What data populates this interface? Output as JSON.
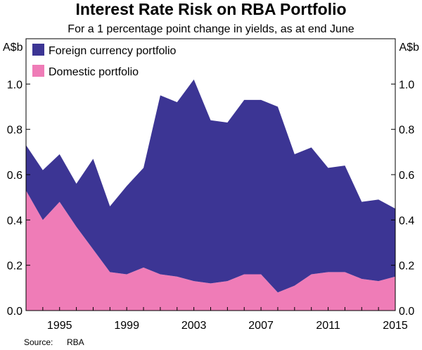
{
  "chart_data": {
    "type": "area",
    "title": "Interest Rate Risk on RBA Portfolio",
    "subtitle": "For a 1 percentage point change in yields, as at end June",
    "unit_left": "A$b",
    "unit_right": "A$b",
    "x": [
      1993,
      1994,
      1995,
      1996,
      1997,
      1998,
      1999,
      2000,
      2001,
      2002,
      2003,
      2004,
      2005,
      2006,
      2007,
      2008,
      2009,
      2010,
      2011,
      2012,
      2013,
      2014,
      2015
    ],
    "series": [
      {
        "name": "Domestic portfolio",
        "color": "#ef7cb7",
        "values": [
          0.53,
          0.4,
          0.48,
          0.37,
          0.27,
          0.17,
          0.16,
          0.19,
          0.16,
          0.15,
          0.13,
          0.12,
          0.13,
          0.16,
          0.16,
          0.08,
          0.11,
          0.16,
          0.17,
          0.17,
          0.14,
          0.13,
          0.15
        ]
      },
      {
        "name": "Foreign currency portfolio",
        "color": "#3c3594",
        "values": [
          0.2,
          0.22,
          0.21,
          0.19,
          0.4,
          0.29,
          0.39,
          0.44,
          0.79,
          0.77,
          0.89,
          0.72,
          0.7,
          0.77,
          0.77,
          0.82,
          0.58,
          0.56,
          0.46,
          0.47,
          0.34,
          0.36,
          0.3
        ]
      }
    ],
    "legend": [
      "Foreign currency portfolio",
      "Domestic portfolio"
    ],
    "legend_position": "top-left",
    "ylim": [
      0,
      1.2
    ],
    "yticks": [
      0.0,
      0.2,
      0.4,
      0.6,
      0.8,
      1.0
    ],
    "ytick_labels": [
      "0.0",
      "0.2",
      "0.4",
      "0.6",
      "0.8",
      "1.0"
    ],
    "xticks": [
      1995,
      1999,
      2003,
      2007,
      2011,
      2015
    ],
    "xtick_labels": [
      "1995",
      "1999",
      "2003",
      "2007",
      "2011",
      "2015"
    ],
    "xlabel": "",
    "ylabel": "A$b",
    "stacked": true
  },
  "source_label": "Source:",
  "source_value": "RBA"
}
